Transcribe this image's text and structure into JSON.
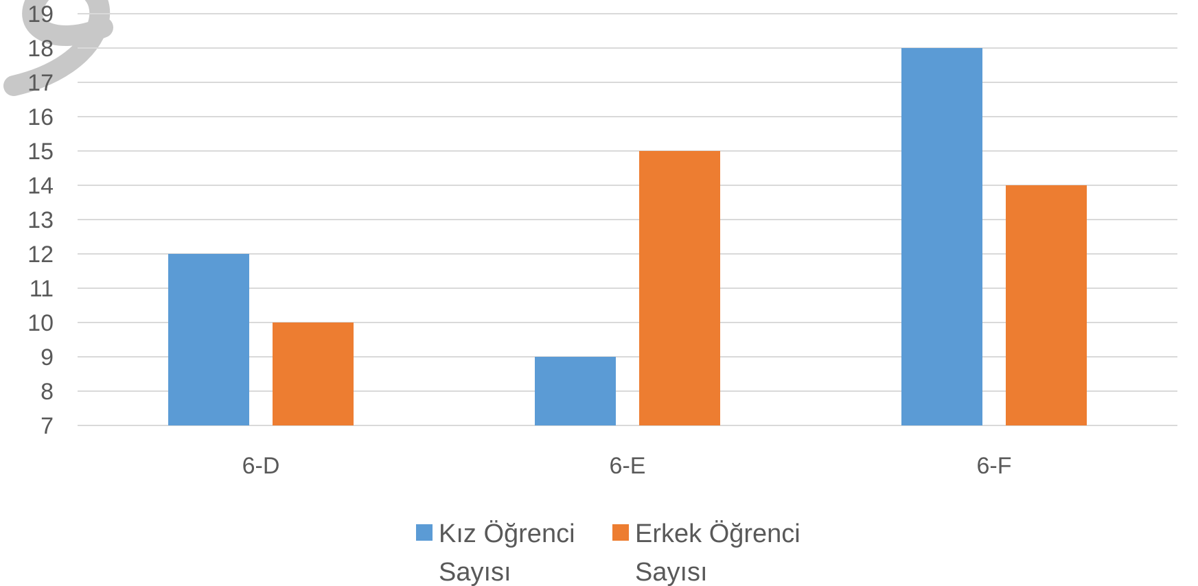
{
  "chart_data": {
    "type": "bar",
    "categories": [
      "6-D",
      "6-E",
      "6-F"
    ],
    "series": [
      {
        "name": "Kız Öğrenci Sayısı",
        "legend_lines": [
          "Kız Öğrenci",
          "Sayısı"
        ],
        "values": [
          12,
          9,
          18
        ],
        "color": "#5b9bd5"
      },
      {
        "name": "Erkek Öğrenci Sayısı",
        "legend_lines": [
          "Erkek Öğrenci",
          "Sayısı"
        ],
        "values": [
          10,
          15,
          14
        ],
        "color": "#ed7d31"
      }
    ],
    "yticks": [
      7,
      8,
      9,
      10,
      11,
      12,
      13,
      14,
      15,
      16,
      17,
      18,
      19
    ],
    "ylim": [
      7,
      19
    ],
    "grid": true,
    "legend_position": "bottom",
    "xlabel": "",
    "ylabel": ""
  },
  "colors": {
    "gridline": "#d9d9d9",
    "text": "#595959",
    "watermark": "#c8c8c8"
  }
}
